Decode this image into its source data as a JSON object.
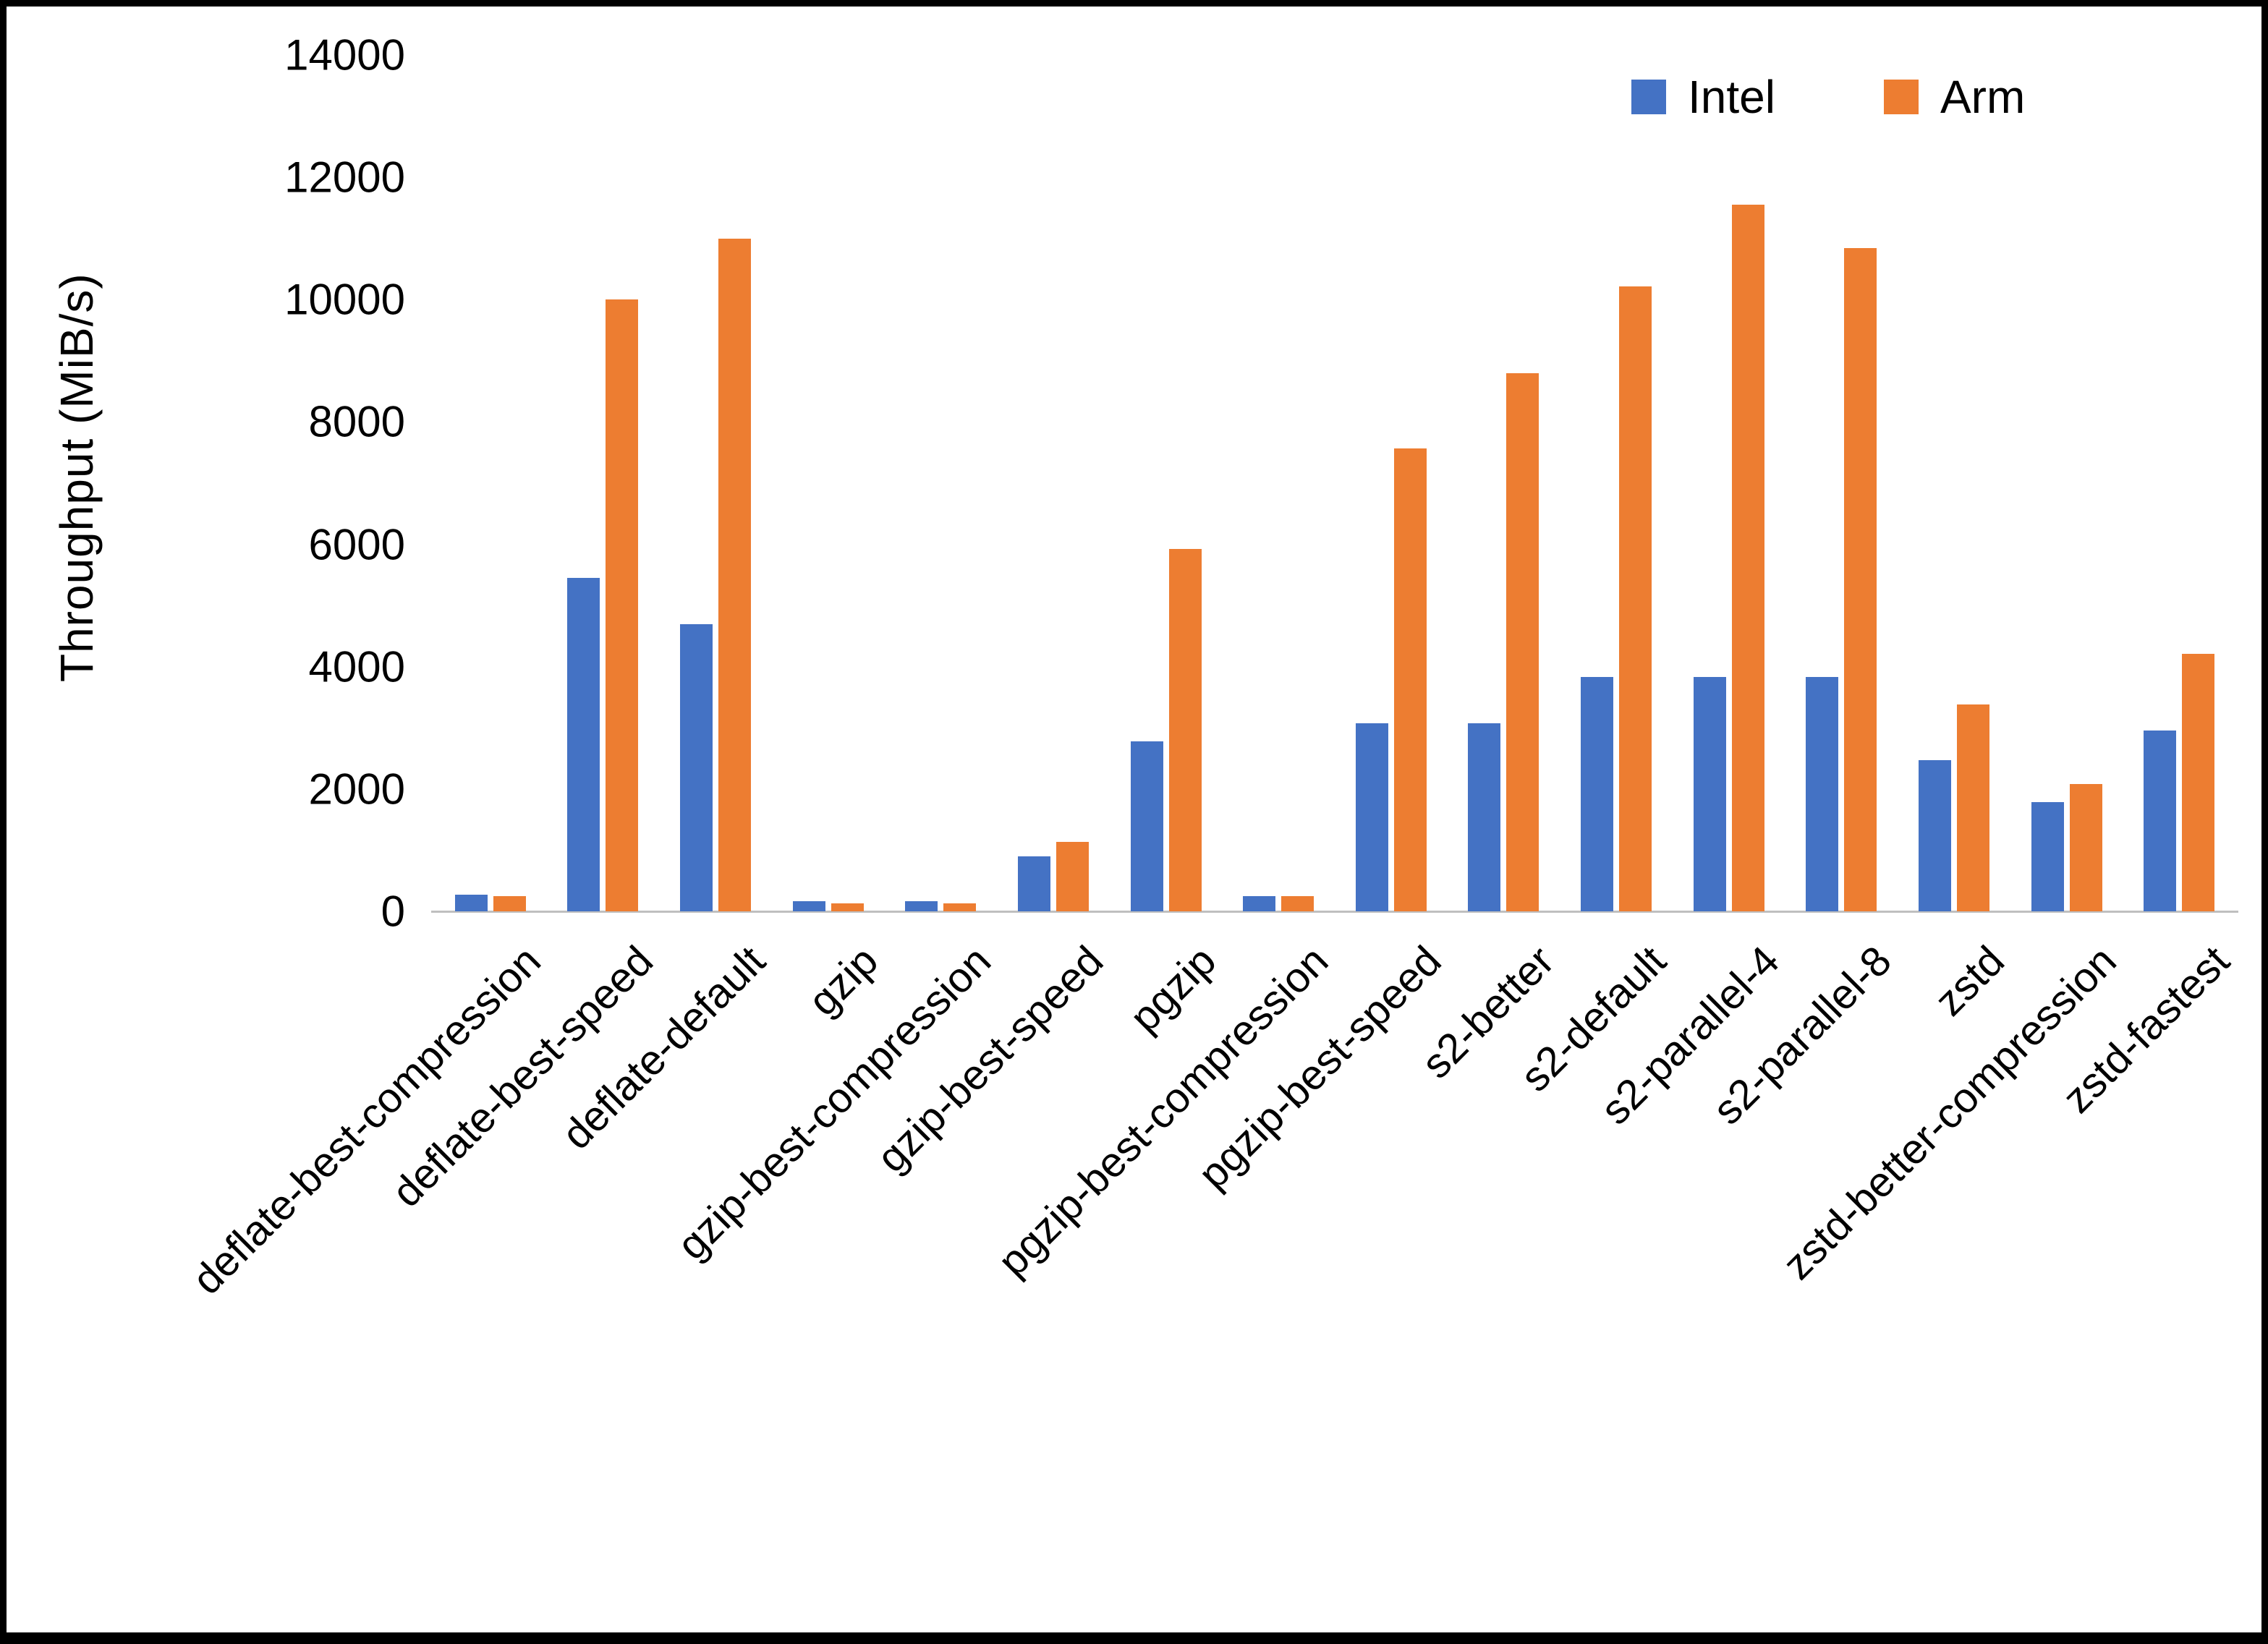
{
  "page": {
    "background": "#ffffff",
    "frame_border_color": "#000000",
    "axis_line_color": "#bfbfbf"
  },
  "chart_data": {
    "type": "bar",
    "title": "",
    "xlabel": "",
    "ylabel": "Throughput (MiB/s)",
    "ylim": [
      0,
      14000
    ],
    "yticks": [
      0,
      2000,
      4000,
      6000,
      8000,
      10000,
      12000,
      14000
    ],
    "grid": false,
    "legend_position": "top-right",
    "categories": [
      "deflate-best-compression",
      "deflate-best-speed",
      "deflate-default",
      "gzip",
      "gzip-best-compression",
      "gzip-best-speed",
      "pgzip",
      "pgzip-best-compression",
      "pgzip-best-speed",
      "s2-better",
      "s2-default",
      "s2-parallel-4",
      "s2-parallel-8",
      "zstd",
      "zstd-better-compression",
      "zstd-fastest"
    ],
    "series": [
      {
        "name": "Intel",
        "color": "#4472C4",
        "values": [
          270,
          5450,
          4700,
          160,
          160,
          900,
          2780,
          250,
          3080,
          3080,
          3830,
          3830,
          3830,
          2470,
          1780,
          2960
        ]
      },
      {
        "name": "Arm",
        "color": "#ED7D31",
        "values": [
          250,
          10000,
          11000,
          130,
          130,
          1130,
          5920,
          250,
          7570,
          8800,
          10220,
          11550,
          10840,
          3380,
          2080,
          4210
        ]
      }
    ]
  }
}
